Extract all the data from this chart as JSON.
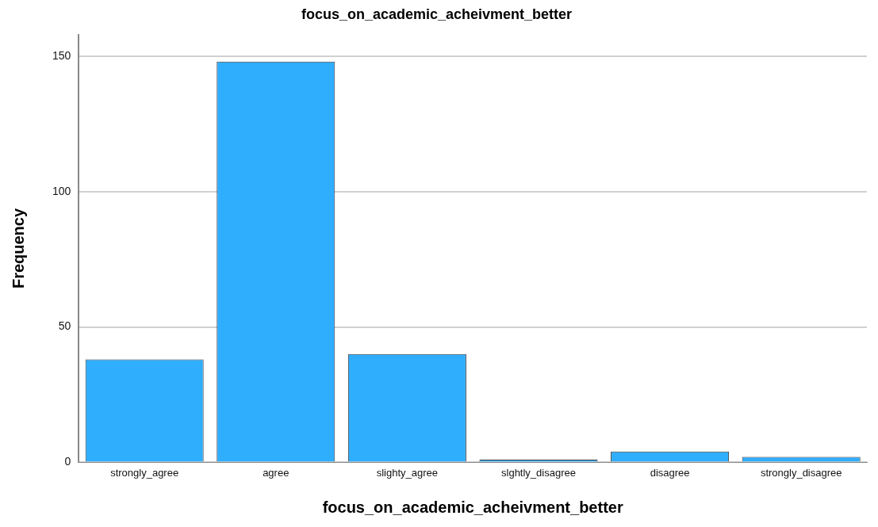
{
  "chart_data": {
    "type": "bar",
    "title": "focus_on_academic_acheivment_better",
    "xlabel": "focus_on_academic_acheivment_better",
    "ylabel": "Frequency",
    "categories": [
      "strongly_agree",
      "agree",
      "slighty_agree",
      "slghtly_disagree",
      "disagree",
      "strongly_disagree"
    ],
    "values": [
      38,
      148,
      40,
      1,
      4,
      2
    ],
    "color": "#30aefe",
    "ylim": [
      0,
      158
    ],
    "yticks": [
      0,
      50,
      100,
      150
    ],
    "grid": "y",
    "legend": false
  }
}
